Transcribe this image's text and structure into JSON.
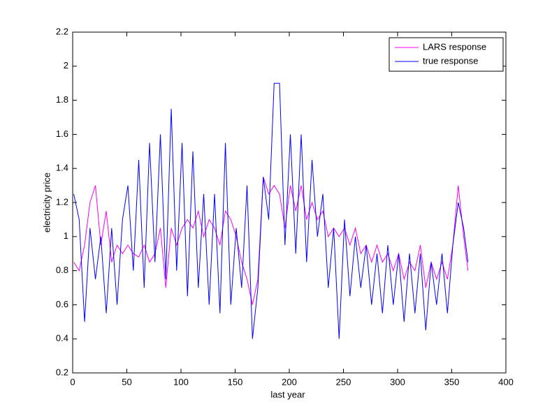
{
  "chart_data": {
    "type": "line",
    "xlabel": "last year",
    "ylabel": "electricity price",
    "xlim": [
      0,
      400
    ],
    "ylim": [
      0.2,
      2.2
    ],
    "xticks": [
      0,
      50,
      100,
      150,
      200,
      250,
      300,
      350,
      400
    ],
    "yticks": [
      0.2,
      0.4,
      0.6,
      0.8,
      1,
      1.2,
      1.4,
      1.6,
      1.8,
      2,
      2.2
    ],
    "legend": "northeast",
    "x": [
      1,
      6,
      11,
      16,
      21,
      26,
      31,
      36,
      41,
      46,
      51,
      56,
      61,
      66,
      71,
      76,
      81,
      86,
      91,
      96,
      101,
      106,
      111,
      116,
      121,
      126,
      131,
      136,
      141,
      146,
      151,
      156,
      161,
      166,
      171,
      176,
      181,
      186,
      191,
      196,
      201,
      206,
      211,
      216,
      221,
      226,
      231,
      236,
      241,
      246,
      251,
      256,
      261,
      266,
      271,
      276,
      281,
      286,
      291,
      296,
      301,
      306,
      311,
      316,
      321,
      326,
      331,
      336,
      341,
      346,
      351,
      356,
      361,
      365
    ],
    "series": [
      {
        "name": "LARS response",
        "color": "#ff00ff",
        "values": [
          0.85,
          0.8,
          0.95,
          1.2,
          1.3,
          0.95,
          1.15,
          0.85,
          0.95,
          0.9,
          0.95,
          0.9,
          0.88,
          0.95,
          0.85,
          0.9,
          1.05,
          0.7,
          1.05,
          0.95,
          1.05,
          1.1,
          1.05,
          1.15,
          1.0,
          1.1,
          1.05,
          0.95,
          1.15,
          1.1,
          1.0,
          0.85,
          0.75,
          0.6,
          0.75,
          1.35,
          1.25,
          1.3,
          1.25,
          1.05,
          1.3,
          1.15,
          1.3,
          1.1,
          1.2,
          1.1,
          1.15,
          1.0,
          1.05,
          1.0,
          1.05,
          0.95,
          1.05,
          0.9,
          0.95,
          0.85,
          0.95,
          0.85,
          0.9,
          0.8,
          0.9,
          0.75,
          0.85,
          0.8,
          0.95,
          0.7,
          0.85,
          0.75,
          0.85,
          0.75,
          0.95,
          1.3,
          1.0,
          0.8
        ]
      },
      {
        "name": "true response",
        "color": "#0000ff",
        "values": [
          1.25,
          1.1,
          0.5,
          1.05,
          0.75,
          1.0,
          0.55,
          1.05,
          0.6,
          1.1,
          1.3,
          0.8,
          1.45,
          0.7,
          1.55,
          0.85,
          1.6,
          0.75,
          1.75,
          0.8,
          1.55,
          0.65,
          1.5,
          0.7,
          1.25,
          0.6,
          1.25,
          0.55,
          1.55,
          0.6,
          1.05,
          0.7,
          1.3,
          0.4,
          0.7,
          1.35,
          1.1,
          1.9,
          1.9,
          0.95,
          1.6,
          0.9,
          1.6,
          0.85,
          1.45,
          1.0,
          1.25,
          0.7,
          1.05,
          0.4,
          1.1,
          0.65,
          1.0,
          0.7,
          0.95,
          0.6,
          0.9,
          0.55,
          0.95,
          0.6,
          0.9,
          0.5,
          0.9,
          0.55,
          0.9,
          0.45,
          0.85,
          0.6,
          0.9,
          0.55,
          0.95,
          1.2,
          1.05,
          0.85
        ]
      }
    ]
  }
}
